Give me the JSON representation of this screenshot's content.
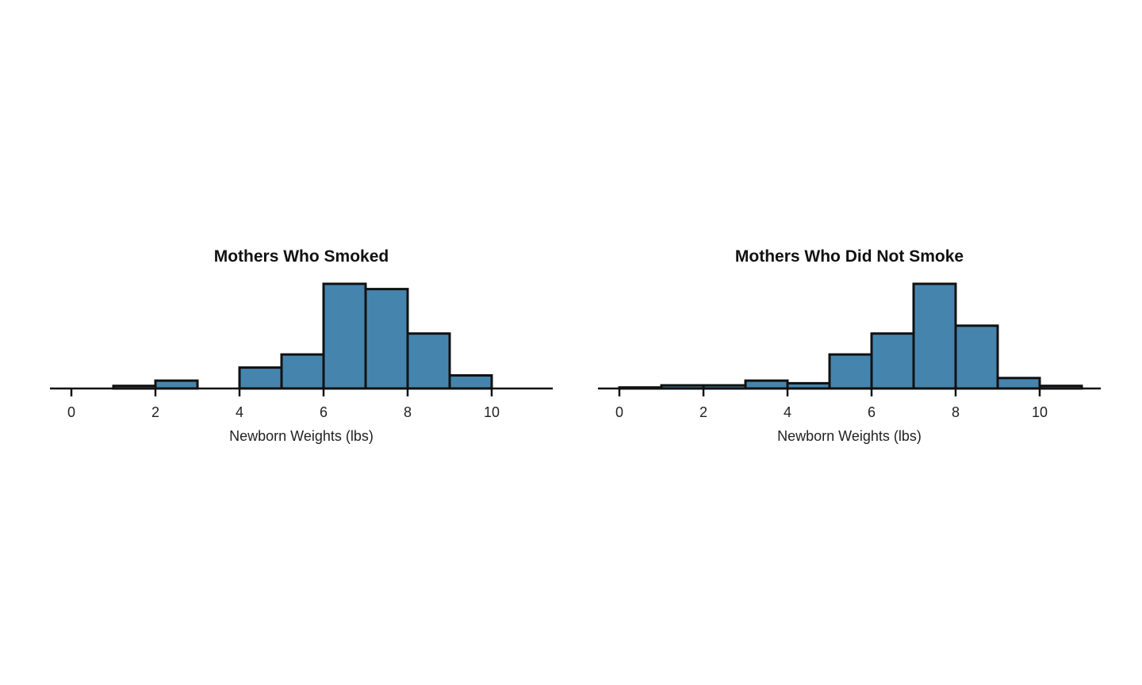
{
  "colors": {
    "bar_fill": "#4585ad",
    "bar_stroke": "#111111"
  },
  "chart_data": [
    {
      "type": "bar",
      "title": "Mothers Who Smoked",
      "xlabel": "Newborn Weights (lbs)",
      "ylabel": "",
      "bin_edges": [
        0,
        1,
        2,
        3,
        4,
        5,
        6,
        7,
        8,
        9,
        10
      ],
      "values": [
        0,
        1,
        3,
        0,
        8,
        13,
        40,
        38,
        21,
        5
      ],
      "xticks": [
        "0",
        "2",
        "4",
        "6",
        "8",
        "10"
      ],
      "xlim": [
        -0.5,
        11.5
      ],
      "ylim": [
        0,
        40
      ]
    },
    {
      "type": "bar",
      "title": "Mothers Who Did Not Smoke",
      "xlabel": "Newborn Weights (lbs)",
      "ylabel": "",
      "bin_edges": [
        0,
        1,
        2,
        3,
        4,
        5,
        6,
        7,
        8,
        9,
        10,
        11
      ],
      "values": [
        0.4,
        1.2,
        1.2,
        3,
        2,
        13,
        21,
        40,
        24,
        4,
        1
      ],
      "xticks": [
        "0",
        "2",
        "4",
        "6",
        "8",
        "10"
      ],
      "xlim": [
        -0.5,
        11.5
      ],
      "ylim": [
        0,
        40
      ]
    }
  ]
}
